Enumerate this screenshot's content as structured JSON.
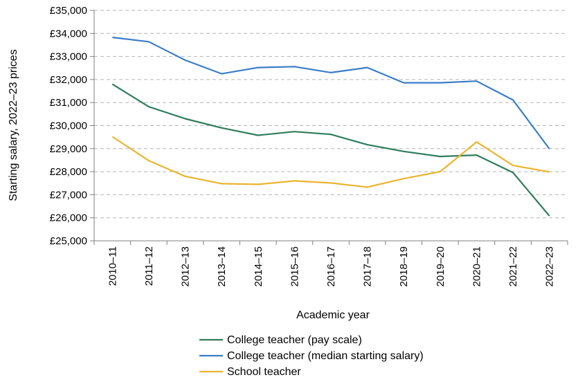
{
  "chart_data": {
    "type": "line",
    "ylabel": "Starting salary, 2022–23 prices",
    "xlabel": "Academic year",
    "ylim": [
      25000,
      35000
    ],
    "y_ticks": [
      25000,
      26000,
      27000,
      28000,
      29000,
      30000,
      31000,
      32000,
      33000,
      34000,
      35000
    ],
    "y_tick_labels": [
      "£25,000",
      "£26,000",
      "£27,000",
      "£28,000",
      "£29,000",
      "£30,000",
      "£31,000",
      "£32,000",
      "£33,000",
      "£34,000",
      "£35,000"
    ],
    "grid": "horizontal dashed",
    "legend_position": "bottom",
    "categories": [
      "2010–11",
      "2011–12",
      "2012–13",
      "2013–14",
      "2014–15",
      "2015–16",
      "2016–17",
      "2017–18",
      "2018–19",
      "2019–20",
      "2020–21",
      "2021–22",
      "2022–23"
    ],
    "series": [
      {
        "name": "College teacher (pay scale)",
        "color": "#2e7d5b",
        "values": [
          31800,
          30820,
          30300,
          29900,
          29580,
          29740,
          29620,
          29170,
          28880,
          28660,
          28720,
          27960,
          26080
        ]
      },
      {
        "name": "College teacher (median starting salary)",
        "color": "#3a7cc9",
        "values": [
          33830,
          33640,
          32840,
          32250,
          32520,
          32560,
          32300,
          32520,
          31860,
          31860,
          31930,
          31110,
          28990
        ]
      },
      {
        "name": "School teacher",
        "color": "#e8b52e",
        "values": [
          29520,
          28480,
          27800,
          27480,
          27450,
          27600,
          27510,
          27330,
          27700,
          28000,
          29290,
          28270,
          27990
        ]
      }
    ]
  }
}
